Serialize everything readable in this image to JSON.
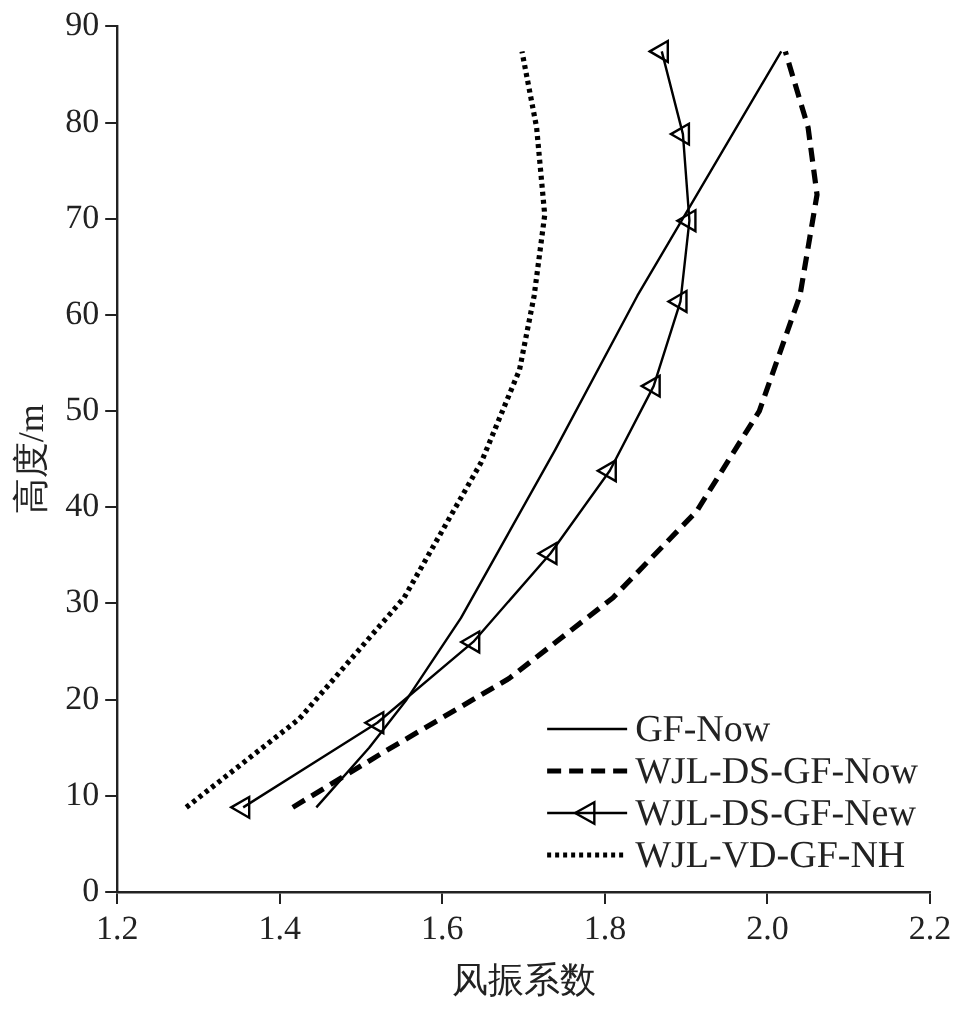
{
  "chart_data": {
    "type": "line",
    "xlabel": "风振系数",
    "ylabel": "高度/m",
    "xlim": [
      1.2,
      2.2
    ],
    "xticks": [
      {
        "value": 1.2,
        "label": "1.2"
      },
      {
        "value": 1.4,
        "label": "1.4"
      },
      {
        "value": 1.6,
        "label": "1.6"
      },
      {
        "value": 1.8,
        "label": "1.8"
      },
      {
        "value": 2.0,
        "label": "2.0"
      },
      {
        "value": 2.2,
        "label": "2.2"
      }
    ],
    "ylim": [
      0,
      90
    ],
    "yticks": [
      0,
      10,
      20,
      30,
      40,
      50,
      60,
      70,
      80,
      90
    ],
    "grid": false,
    "legend": "bottom right",
    "series": [
      {
        "name": "GF-Now",
        "color": "#000000",
        "line_style": "solid",
        "marker": "none",
        "x": [
          1.445,
          1.51,
          1.556,
          1.623,
          1.739,
          1.84,
          2.017
        ],
        "values": [
          8.8,
          15,
          20,
          28.5,
          46,
          62,
          87.4
        ]
      },
      {
        "name": "WJL-DS-GF-Now",
        "color": "#000000",
        "line_style": "dashed",
        "marker": "none",
        "x": [
          1.416,
          1.527,
          1.682,
          1.81,
          1.913,
          1.99,
          2.04,
          2.061,
          2.05,
          2.022
        ],
        "values": [
          8.8,
          14.5,
          22.2,
          30.6,
          39.6,
          50,
          62,
          72.5,
          79.5,
          87.4
        ]
      },
      {
        "name": "WJL-DS-GF-New",
        "color": "#000000",
        "line_style": "solid",
        "marker": "triangle",
        "x": [
          1.355,
          1.52,
          1.638,
          1.733,
          1.806,
          1.86,
          1.893,
          1.904,
          1.896,
          1.87
        ],
        "values": [
          8.8,
          17.6,
          26,
          35.2,
          43.8,
          52.6,
          61.4,
          69.8,
          78.8,
          87.4
        ]
      },
      {
        "name": "WJL-VD-GF-NH",
        "color": "#000000",
        "line_style": "dotted",
        "marker": "none",
        "x": [
          1.285,
          1.424,
          1.553,
          1.648,
          1.695,
          1.713,
          1.726,
          1.716,
          1.698
        ],
        "values": [
          8.8,
          18,
          30.6,
          44.7,
          54.3,
          62,
          70.4,
          79.5,
          87.4
        ]
      }
    ]
  }
}
